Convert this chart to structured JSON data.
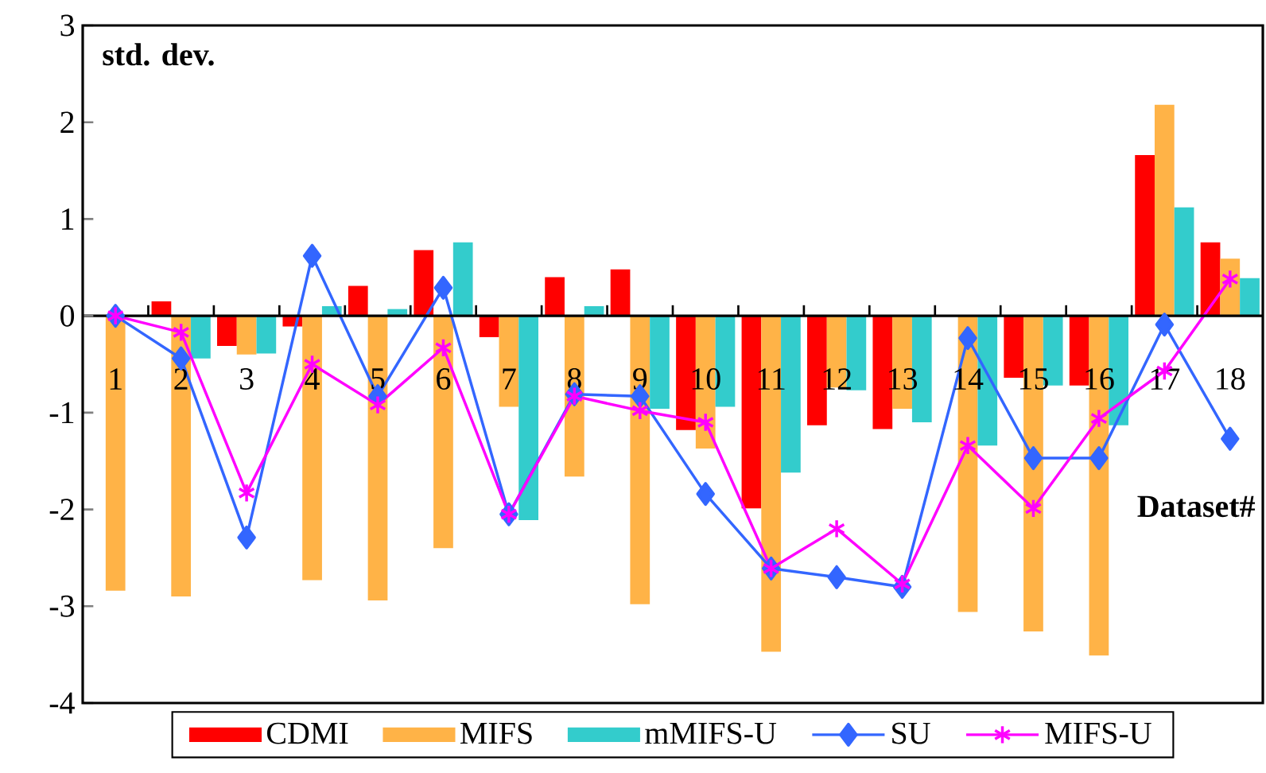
{
  "chart_data": {
    "type": "bar",
    "ylabel": "std. dev.",
    "xlabel": "Dataset#",
    "categories": [
      "1",
      "2",
      "3",
      "4",
      "5",
      "6",
      "7",
      "8",
      "9",
      "10",
      "11",
      "12",
      "13",
      "14",
      "15",
      "16",
      "17",
      "18"
    ],
    "series": [
      {
        "name": "CDMI",
        "color": "#ff0000",
        "values": [
          0,
          0.15,
          -0.31,
          -0.11,
          0.31,
          0.68,
          -0.22,
          0.4,
          0.48,
          -1.18,
          -1.99,
          -1.13,
          -1.17,
          0,
          -0.64,
          -0.72,
          1.66,
          0.76
        ]
      },
      {
        "name": "MIFS",
        "color": "#ffb347",
        "values": [
          -2.84,
          -2.9,
          -0.4,
          -2.73,
          -2.94,
          -2.4,
          -0.94,
          -1.66,
          -2.98,
          -1.37,
          -3.47,
          -0.74,
          -0.96,
          -3.06,
          -3.26,
          -3.51,
          2.18,
          0.59
        ]
      },
      {
        "name": "mMIFS-U",
        "color": "#33cccc",
        "values": [
          0,
          -0.44,
          -0.39,
          0.1,
          0.07,
          0.76,
          -2.11,
          0.1,
          -0.96,
          -0.94,
          -1.62,
          -0.77,
          -1.1,
          -1.34,
          -0.72,
          -1.13,
          1.12,
          0.39
        ]
      },
      {
        "name": "SU",
        "type": "line",
        "color": "#3366ff",
        "marker": "diamond",
        "values": [
          0,
          -0.44,
          -2.29,
          0.62,
          -0.83,
          0.29,
          -2.05,
          -0.81,
          -0.83,
          -1.84,
          -2.61,
          -2.7,
          -2.8,
          -0.23,
          -1.47,
          -1.47,
          -0.09,
          -1.27
        ]
      },
      {
        "name": "MIFS-U",
        "type": "line",
        "color": "#ff00ff",
        "marker": "cross",
        "values": [
          0,
          -0.17,
          -1.83,
          -0.5,
          -0.92,
          -0.33,
          -2.05,
          -0.83,
          -0.98,
          -1.1,
          -2.61,
          -2.2,
          -2.77,
          -1.34,
          -1.99,
          -1.06,
          -0.57,
          0.38
        ]
      }
    ],
    "ylim": [
      -4,
      3
    ],
    "yticks": [
      -4,
      -3,
      -2,
      -1,
      0,
      1,
      2,
      3
    ],
    "grid": false,
    "legend": "bottom"
  }
}
